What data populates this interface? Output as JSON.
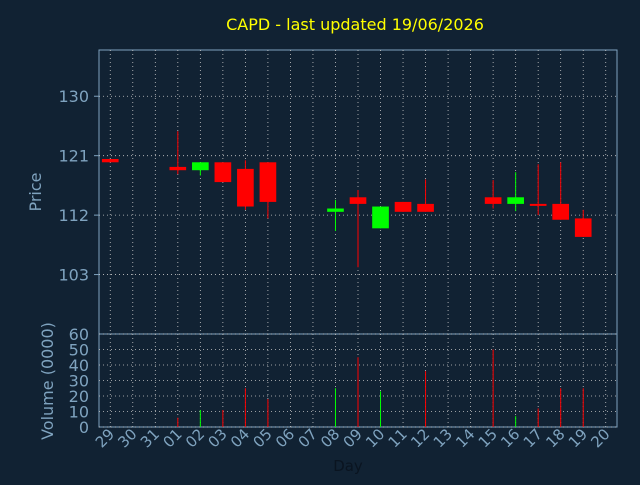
{
  "colors": {
    "background": "#112233",
    "title": "#ffff00",
    "axis_text": "#7fa3bf",
    "grid": "#c8c8c8",
    "up": "#00ff00",
    "down": "#ff0000"
  },
  "chart_data": {
    "type": "candlestick",
    "title": "CAPD - last updated 19/06/2026",
    "xlabel": "Day",
    "price": {
      "ylabel": "Price",
      "ylim": [
        94,
        137
      ],
      "ticks": [
        "103",
        "112",
        "121",
        "130"
      ]
    },
    "volume": {
      "ylabel": "Volume (0000)",
      "ylim": [
        0,
        60
      ],
      "ticks": [
        "0",
        "10",
        "20",
        "30",
        "40",
        "50",
        "60"
      ]
    },
    "x": [
      "29",
      "30",
      "31",
      "01",
      "02",
      "03",
      "04",
      "05",
      "06",
      "07",
      "08",
      "09",
      "10",
      "11",
      "12",
      "13",
      "14",
      "15",
      "16",
      "17",
      "18",
      "19",
      "20"
    ],
    "grid": true,
    "candles": [
      {
        "day": "29",
        "open": 120.5,
        "close": 120.0,
        "high": 120.5,
        "low": 120.0,
        "volume": 0
      },
      {
        "day": "01",
        "open": 119.3,
        "close": 118.8,
        "high": 124.7,
        "low": 118.2,
        "volume": 6
      },
      {
        "day": "02",
        "open": 118.8,
        "close": 120.0,
        "high": 120.0,
        "low": 118.0,
        "volume": 11
      },
      {
        "day": "03",
        "open": 120.0,
        "close": 117.0,
        "high": 120.0,
        "low": 117.0,
        "volume": 11
      },
      {
        "day": "04",
        "open": 119.0,
        "close": 113.3,
        "high": 120.3,
        "low": 112.8,
        "volume": 25
      },
      {
        "day": "05",
        "open": 120.0,
        "close": 114.0,
        "high": 120.0,
        "low": 111.5,
        "volume": 18
      },
      {
        "day": "08",
        "open": 112.5,
        "close": 113.0,
        "high": 114.3,
        "low": 109.6,
        "volume": 25
      },
      {
        "day": "09",
        "open": 114.7,
        "close": 113.7,
        "high": 115.8,
        "low": 104.1,
        "volume": 45
      },
      {
        "day": "10",
        "open": 110.0,
        "close": 113.3,
        "high": 113.3,
        "low": 110.0,
        "volume": 23
      },
      {
        "day": "11",
        "open": 114.0,
        "close": 112.5,
        "high": 114.0,
        "low": 112.5,
        "volume": 0
      },
      {
        "day": "12",
        "open": 113.7,
        "close": 112.5,
        "high": 117.4,
        "low": 112.5,
        "volume": 36
      },
      {
        "day": "15",
        "open": 114.7,
        "close": 113.7,
        "high": 117.3,
        "low": 113.0,
        "volume": 50
      },
      {
        "day": "16",
        "open": 113.7,
        "close": 114.7,
        "high": 118.5,
        "low": 112.6,
        "volume": 7
      },
      {
        "day": "17",
        "open": 113.7,
        "close": 113.5,
        "high": 119.7,
        "low": 112.0,
        "volume": 12
      },
      {
        "day": "18",
        "open": 113.7,
        "close": 111.3,
        "high": 120.0,
        "low": 111.3,
        "volume": 25
      },
      {
        "day": "19",
        "open": 111.5,
        "close": 108.7,
        "high": 112.8,
        "low": 108.7,
        "volume": 25
      }
    ]
  }
}
